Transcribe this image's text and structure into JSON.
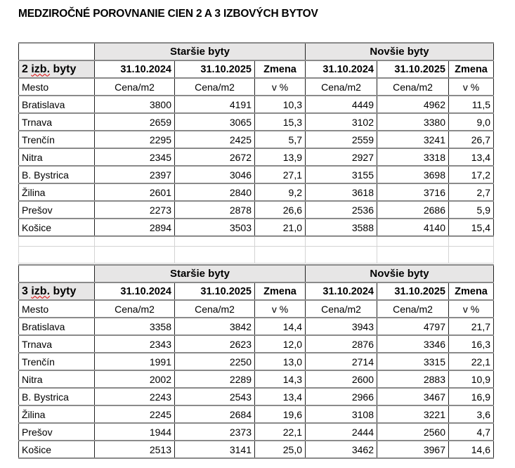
{
  "title": "MEDZIROČNÉ POROVNANIE CIEN 2 A 3 IZBOVÝCH BYTOV",
  "tables": [
    {
      "label_prefix": "2",
      "label_word": "izb.",
      "label_suffix": "byty",
      "groups": [
        "Staršie byty",
        "Novšie byty"
      ],
      "headers": [
        "31.10.2024",
        "31.10.2025",
        "Zmena",
        "31.10.2024",
        "31.10.2025",
        "Zmena"
      ],
      "subheaders": [
        "Mesto",
        "Cena/m2",
        "Cena/m2",
        "v %",
        "Cena/m2",
        "Cena/m2",
        "v %"
      ],
      "rows": [
        [
          "Bratislava",
          "3800",
          "4191",
          "10,3",
          "4449",
          "4962",
          "11,5"
        ],
        [
          "Trnava",
          "2659",
          "3065",
          "15,3",
          "3102",
          "3380",
          "9,0"
        ],
        [
          "Trenčín",
          "2295",
          "2425",
          "5,7",
          "2559",
          "3241",
          "26,7"
        ],
        [
          "Nitra",
          "2345",
          "2672",
          "13,9",
          "2927",
          "3318",
          "13,4"
        ],
        [
          "B. Bystrica",
          "2397",
          "3046",
          "27,1",
          "3155",
          "3698",
          "17,2"
        ],
        [
          "Žilina",
          "2601",
          "2840",
          "9,2",
          "3618",
          "3716",
          "2,7"
        ],
        [
          "Prešov",
          "2273",
          "2878",
          "26,6",
          "2536",
          "2686",
          "5,9"
        ],
        [
          "Košice",
          "2894",
          "3503",
          "21,0",
          "3588",
          "4140",
          "15,4"
        ]
      ]
    },
    {
      "label_prefix": "3",
      "label_word": "izb.",
      "label_suffix": "byty",
      "groups": [
        "Staršie byty",
        "Novšie byty"
      ],
      "headers": [
        "31.10.2024",
        "31.10.2025",
        "Zmena",
        "31.10.2024",
        "31.10.2025",
        "Zmena"
      ],
      "subheaders": [
        "Mesto",
        "Cena/m2",
        "Cena/m2",
        "v %",
        "Cena/m2",
        "Cena/m2",
        "v %"
      ],
      "rows": [
        [
          "Bratislava",
          "3358",
          "3842",
          "14,4",
          "3943",
          "4797",
          "21,7"
        ],
        [
          "Trnava",
          "2343",
          "2623",
          "12,0",
          "2876",
          "3346",
          "16,3"
        ],
        [
          "Trenčín",
          "1991",
          "2250",
          "13,0",
          "2714",
          "3315",
          "22,1"
        ],
        [
          "Nitra",
          "2002",
          "2289",
          "14,3",
          "2600",
          "2883",
          "10,9"
        ],
        [
          "B. Bystrica",
          "2243",
          "2543",
          "13,4",
          "2966",
          "3467",
          "16,9"
        ],
        [
          "Žilina",
          "2245",
          "2684",
          "19,6",
          "3108",
          "3221",
          "3,6"
        ],
        [
          "Prešov",
          "1944",
          "2373",
          "22,1",
          "2444",
          "2560",
          "4,7"
        ],
        [
          "Košice",
          "2513",
          "3141",
          "25,0",
          "3462",
          "3967",
          "14,6"
        ]
      ]
    }
  ],
  "colors": {
    "header_fill": "#e7e6e6",
    "border": "#8a8a8a",
    "spellcheck": "#dd0000"
  }
}
